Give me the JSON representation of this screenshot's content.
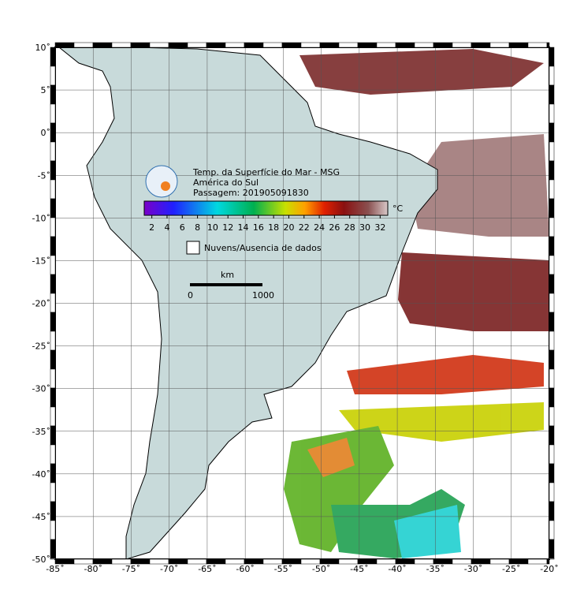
{
  "map": {
    "title": "Temp. da Superfície do Mar - MSG",
    "region": "América do Sul",
    "pass": "Passagem: 201905091830",
    "xlim": [
      -85,
      -20
    ],
    "ylim": [
      -50,
      10
    ],
    "xticks": [
      {
        "value": -85,
        "label": "-85˚"
      },
      {
        "value": -80,
        "label": "-80˚"
      },
      {
        "value": -75,
        "label": "-75˚"
      },
      {
        "value": -70,
        "label": "-70˚"
      },
      {
        "value": -65,
        "label": "-65˚"
      },
      {
        "value": -60,
        "label": "-60˚"
      },
      {
        "value": -55,
        "label": "-55˚"
      },
      {
        "value": -50,
        "label": "-50˚"
      },
      {
        "value": -45,
        "label": "-45˚"
      },
      {
        "value": -40,
        "label": "-40˚"
      },
      {
        "value": -35,
        "label": "-35˚"
      },
      {
        "value": -30,
        "label": "-30˚"
      },
      {
        "value": -25,
        "label": "-25˚"
      },
      {
        "value": -20,
        "label": "-20˚"
      }
    ],
    "yticks": [
      {
        "value": 10,
        "label": "10˚"
      },
      {
        "value": 5,
        "label": "5˚"
      },
      {
        "value": 0,
        "label": "0˚"
      },
      {
        "value": -5,
        "label": "-5˚"
      },
      {
        "value": -10,
        "label": "-10˚"
      },
      {
        "value": -15,
        "label": "-15˚"
      },
      {
        "value": -20,
        "label": "-20˚"
      },
      {
        "value": -25,
        "label": "-25˚"
      },
      {
        "value": -30,
        "label": "-30˚"
      },
      {
        "value": -35,
        "label": "-35˚"
      },
      {
        "value": -40,
        "label": "-40˚"
      },
      {
        "value": -45,
        "label": "-45˚"
      },
      {
        "value": -50,
        "label": "-50˚"
      }
    ],
    "colorbar": {
      "lim": [
        1,
        33
      ],
      "ticks": [
        2,
        4,
        6,
        8,
        10,
        12,
        14,
        16,
        18,
        20,
        22,
        24,
        26,
        28,
        30,
        32
      ],
      "unit": "°C"
    },
    "legend": "Nuvens/Ausencia de dados",
    "scale": {
      "unit": "km",
      "labels": [
        "0",
        "1000"
      ]
    }
  }
}
